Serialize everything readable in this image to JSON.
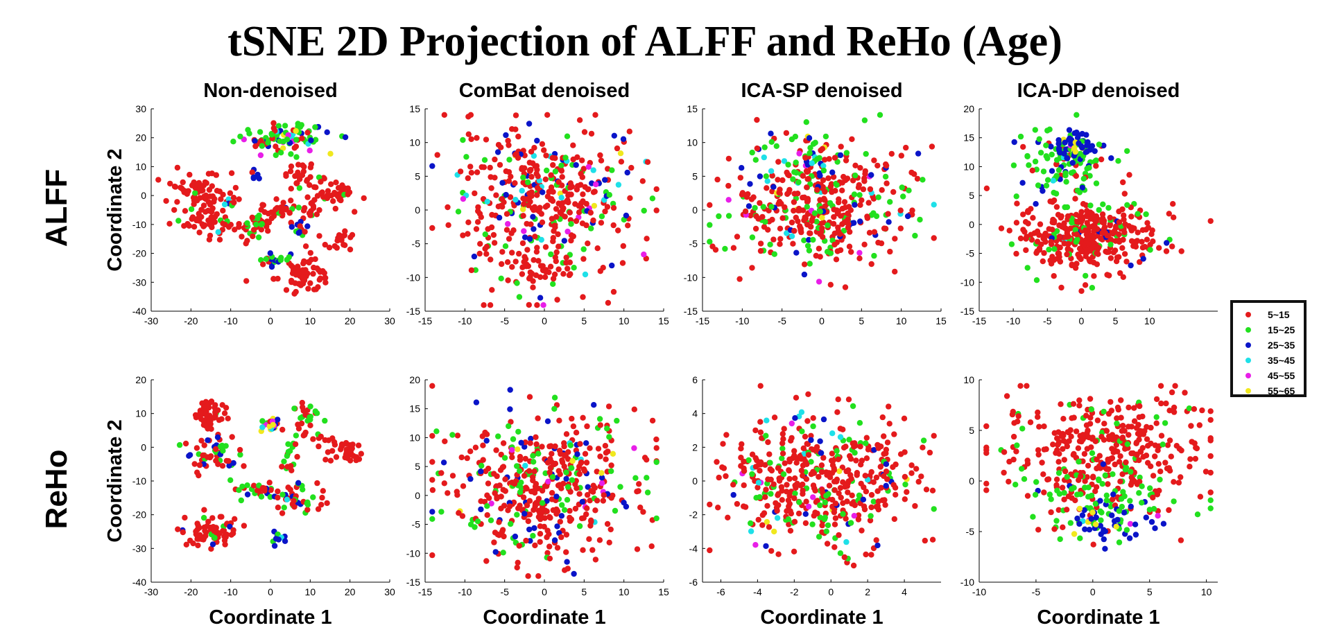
{
  "title": "tSNE 2D Projection of ALFF and ReHo (Age)",
  "row_labels": [
    "ALFF",
    "ReHo"
  ],
  "x_axis_label": "Coordinate 1",
  "y_axis_label": "Coordinate 2",
  "legend": {
    "placement": "right",
    "entries": [
      {
        "label": "5~15",
        "color": "#e41a1c"
      },
      {
        "label": "15~25",
        "color": "#22e01e"
      },
      {
        "label": "25~35",
        "color": "#0a14c8"
      },
      {
        "label": "35~45",
        "color": "#1ee0e8"
      },
      {
        "label": "45~55",
        "color": "#e81ee8"
      },
      {
        "label": "55~65",
        "color": "#f0e81e"
      }
    ]
  },
  "chart_data": [
    {
      "type": "scatter",
      "row": "ALFF",
      "title": "Non-denoised",
      "xlim": [
        -30,
        30
      ],
      "ylim": [
        -40,
        30
      ],
      "xticks": [
        -30,
        -20,
        -10,
        0,
        10,
        20,
        30
      ],
      "yticks": [
        -40,
        -30,
        -20,
        -10,
        0,
        10,
        20,
        30
      ],
      "clusters": [
        {
          "cx": 3,
          "cy": 20,
          "sx": 6,
          "sy": 2.5,
          "n": 90,
          "mix": [
            0.15,
            0.4,
            0.25,
            0.05,
            0.08,
            0.07
          ]
        },
        {
          "cx": -18,
          "cy": 2,
          "sx": 3.5,
          "sy": 3,
          "n": 60,
          "mix": [
            0.95,
            0.05,
            0,
            0,
            0,
            0
          ]
        },
        {
          "cx": -16,
          "cy": -8,
          "sx": 4,
          "sy": 3,
          "n": 55,
          "mix": [
            0.92,
            0.05,
            0,
            0.03,
            0,
            0
          ]
        },
        {
          "cx": -5,
          "cy": -10,
          "sx": 3,
          "sy": 2.5,
          "n": 40,
          "mix": [
            0.5,
            0.45,
            0.05,
            0,
            0,
            0
          ]
        },
        {
          "cx": 3,
          "cy": -6,
          "sx": 4,
          "sy": 2.5,
          "n": 40,
          "mix": [
            0.8,
            0.15,
            0.05,
            0,
            0,
            0
          ]
        },
        {
          "cx": 7,
          "cy": 7,
          "sx": 2,
          "sy": 3,
          "n": 25,
          "mix": [
            0.9,
            0.1,
            0,
            0,
            0,
            0
          ]
        },
        {
          "cx": 14,
          "cy": 1,
          "sx": 4,
          "sy": 2.5,
          "n": 45,
          "mix": [
            0.9,
            0.08,
            0.02,
            0,
            0,
            0
          ]
        },
        {
          "cx": 18,
          "cy": -16,
          "sx": 2,
          "sy": 2,
          "n": 20,
          "mix": [
            1,
            0,
            0,
            0,
            0,
            0
          ]
        },
        {
          "cx": 8,
          "cy": -27,
          "sx": 3.5,
          "sy": 3,
          "n": 70,
          "mix": [
            1,
            0,
            0,
            0,
            0,
            0
          ]
        },
        {
          "cx": 0,
          "cy": -22,
          "sx": 2,
          "sy": 1.5,
          "n": 20,
          "mix": [
            0.2,
            0.5,
            0.2,
            0.1,
            0,
            0
          ]
        },
        {
          "cx": 7,
          "cy": -12,
          "sx": 1.5,
          "sy": 1.5,
          "n": 12,
          "mix": [
            0.2,
            0.3,
            0.5,
            0,
            0,
            0
          ]
        },
        {
          "cx": -4,
          "cy": 8,
          "sx": 1,
          "sy": 1,
          "n": 6,
          "mix": [
            0.3,
            0,
            0.7,
            0,
            0,
            0
          ]
        },
        {
          "cx": -11,
          "cy": -3,
          "sx": 1.5,
          "sy": 1.5,
          "n": 10,
          "mix": [
            0.5,
            0.2,
            0.2,
            0.1,
            0,
            0
          ]
        }
      ]
    },
    {
      "type": "scatter",
      "row": "ALFF",
      "title": "ComBat denoised",
      "xlim": [
        -15,
        15
      ],
      "ylim": [
        -15,
        15
      ],
      "xticks": [
        -15,
        -10,
        -5,
        0,
        5,
        10,
        15
      ],
      "yticks": [
        -15,
        -10,
        -5,
        0,
        5,
        10,
        15
      ],
      "clusters": [
        {
          "cx": 0,
          "cy": 1.5,
          "sx": 6,
          "sy": 5.5,
          "n": 420,
          "mix": [
            0.68,
            0.16,
            0.1,
            0.03,
            0.02,
            0.01
          ]
        },
        {
          "cx": -1,
          "cy": -9,
          "sx": 2.5,
          "sy": 1.8,
          "n": 40,
          "mix": [
            0.9,
            0.05,
            0.05,
            0,
            0,
            0
          ]
        }
      ]
    },
    {
      "type": "scatter",
      "row": "ALFF",
      "title": "ICA-SP denoised",
      "xlim": [
        -15,
        15
      ],
      "ylim": [
        -15,
        15
      ],
      "xticks": [
        -15,
        -10,
        -5,
        0,
        5,
        10,
        15
      ],
      "yticks": [
        -15,
        -10,
        -5,
        0,
        5,
        10,
        15
      ],
      "clusters": [
        {
          "cx": 0,
          "cy": 0.5,
          "sx": 5.5,
          "sy": 4.5,
          "n": 420,
          "mix": [
            0.66,
            0.22,
            0.06,
            0.03,
            0.02,
            0.01
          ]
        },
        {
          "cx": -1,
          "cy": 8,
          "sx": 2,
          "sy": 2,
          "n": 40,
          "mix": [
            0.3,
            0.4,
            0.15,
            0.05,
            0.05,
            0.05
          ]
        }
      ]
    },
    {
      "type": "scatter",
      "row": "ALFF",
      "title": "ICA-DP denoised",
      "xlim": [
        -15,
        20
      ],
      "ylim": [
        -15,
        20
      ],
      "xticks": [
        -15,
        -10,
        -5,
        0,
        5,
        10
      ],
      "yticks": [
        -15,
        -10,
        -5,
        0,
        5,
        10,
        15,
        20
      ],
      "clusters": [
        {
          "cx": 1,
          "cy": -2,
          "sx": 5,
          "sy": 3.2,
          "n": 380,
          "mix": [
            0.85,
            0.12,
            0.02,
            0.01,
            0,
            0
          ]
        },
        {
          "cx": -2,
          "cy": 10.5,
          "sx": 3.5,
          "sy": 2.5,
          "n": 110,
          "mix": [
            0.15,
            0.7,
            0.12,
            0.03,
            0,
            0
          ]
        },
        {
          "cx": -1.5,
          "cy": 13.5,
          "sx": 1.5,
          "sy": 1.3,
          "n": 55,
          "mix": [
            0,
            0.1,
            0.75,
            0,
            0.05,
            0.1
          ]
        }
      ]
    },
    {
      "type": "scatter",
      "row": "ReHo",
      "title": "",
      "xlim": [
        -30,
        30
      ],
      "ylim": [
        -40,
        20
      ],
      "xticks": [
        -30,
        -20,
        -10,
        0,
        10,
        20,
        30
      ],
      "yticks": [
        -40,
        -30,
        -20,
        -10,
        0,
        10,
        20
      ],
      "clusters": [
        {
          "cx": -15,
          "cy": 10,
          "sx": 2,
          "sy": 2.5,
          "n": 50,
          "mix": [
            0.95,
            0.05,
            0,
            0,
            0,
            0
          ]
        },
        {
          "cx": -14,
          "cy": -2,
          "sx": 3,
          "sy": 3,
          "n": 55,
          "mix": [
            0.55,
            0.25,
            0.2,
            0,
            0,
            0
          ]
        },
        {
          "cx": -15,
          "cy": -25,
          "sx": 3.5,
          "sy": 2.5,
          "n": 70,
          "mix": [
            0.9,
            0.05,
            0.05,
            0,
            0,
            0
          ]
        },
        {
          "cx": -3,
          "cy": -13,
          "sx": 2.5,
          "sy": 1.5,
          "n": 30,
          "mix": [
            0.4,
            0.45,
            0.1,
            0.05,
            0,
            0
          ]
        },
        {
          "cx": 0,
          "cy": 7,
          "sx": 1.3,
          "sy": 1.3,
          "n": 25,
          "mix": [
            0.1,
            0.2,
            0.15,
            0.1,
            0.25,
            0.2
          ]
        },
        {
          "cx": 5,
          "cy": -3,
          "sx": 1.2,
          "sy": 2.5,
          "n": 15,
          "mix": [
            0.3,
            0.7,
            0,
            0,
            0,
            0
          ]
        },
        {
          "cx": 9,
          "cy": 8,
          "sx": 2,
          "sy": 3,
          "n": 35,
          "mix": [
            0.55,
            0.45,
            0,
            0,
            0,
            0
          ]
        },
        {
          "cx": 8,
          "cy": -16,
          "sx": 3,
          "sy": 2,
          "n": 40,
          "mix": [
            0.7,
            0.15,
            0.1,
            0.05,
            0,
            0
          ]
        },
        {
          "cx": 18,
          "cy": -1,
          "sx": 3,
          "sy": 2,
          "n": 45,
          "mix": [
            1,
            0,
            0,
            0,
            0,
            0
          ]
        },
        {
          "cx": 2,
          "cy": -27,
          "sx": 1.5,
          "sy": 1.2,
          "n": 10,
          "mix": [
            0,
            0.2,
            0.6,
            0.2,
            0,
            0
          ]
        }
      ]
    },
    {
      "type": "scatter",
      "row": "ReHo",
      "title": "",
      "xlim": [
        -15,
        15
      ],
      "ylim": [
        -15,
        20
      ],
      "xticks": [
        -15,
        -10,
        -5,
        0,
        5,
        10,
        15
      ],
      "yticks": [
        -15,
        -10,
        -5,
        0,
        5,
        10,
        15,
        20
      ],
      "clusters": [
        {
          "cx": 0,
          "cy": 1.5,
          "sx": 6,
          "sy": 6,
          "n": 470,
          "mix": [
            0.7,
            0.16,
            0.1,
            0.02,
            0.01,
            0.01
          ]
        }
      ]
    },
    {
      "type": "scatter",
      "row": "ReHo",
      "title": "",
      "xlim": [
        -7,
        6
      ],
      "ylim": [
        -6,
        6
      ],
      "xticks": [
        -6,
        -4,
        -2,
        0,
        2,
        4
      ],
      "yticks": [
        -6,
        -4,
        -2,
        0,
        2,
        4,
        6
      ],
      "clusters": [
        {
          "cx": -0.6,
          "cy": 0,
          "sx": 2.6,
          "sy": 2,
          "n": 460,
          "mix": [
            0.7,
            0.18,
            0.07,
            0.02,
            0.02,
            0.01
          ]
        }
      ]
    },
    {
      "type": "scatter",
      "row": "ReHo",
      "title": "",
      "xlim": [
        -10,
        11
      ],
      "ylim": [
        -10,
        10
      ],
      "xticks": [
        -10,
        -5,
        0,
        5,
        10
      ],
      "yticks": [
        -10,
        -5,
        0,
        5,
        10
      ],
      "clusters": [
        {
          "cx": 1,
          "cy": 3.5,
          "sx": 4.5,
          "sy": 2.5,
          "n": 330,
          "mix": [
            0.9,
            0.1,
            0,
            0,
            0,
            0
          ]
        },
        {
          "cx": 0.5,
          "cy": -1.5,
          "sx": 4,
          "sy": 1.8,
          "n": 110,
          "mix": [
            0.35,
            0.6,
            0.05,
            0,
            0,
            0
          ]
        },
        {
          "cx": 1,
          "cy": -4,
          "sx": 1.8,
          "sy": 1.1,
          "n": 55,
          "mix": [
            0,
            0.2,
            0.7,
            0.03,
            0.04,
            0.03
          ]
        }
      ]
    }
  ]
}
